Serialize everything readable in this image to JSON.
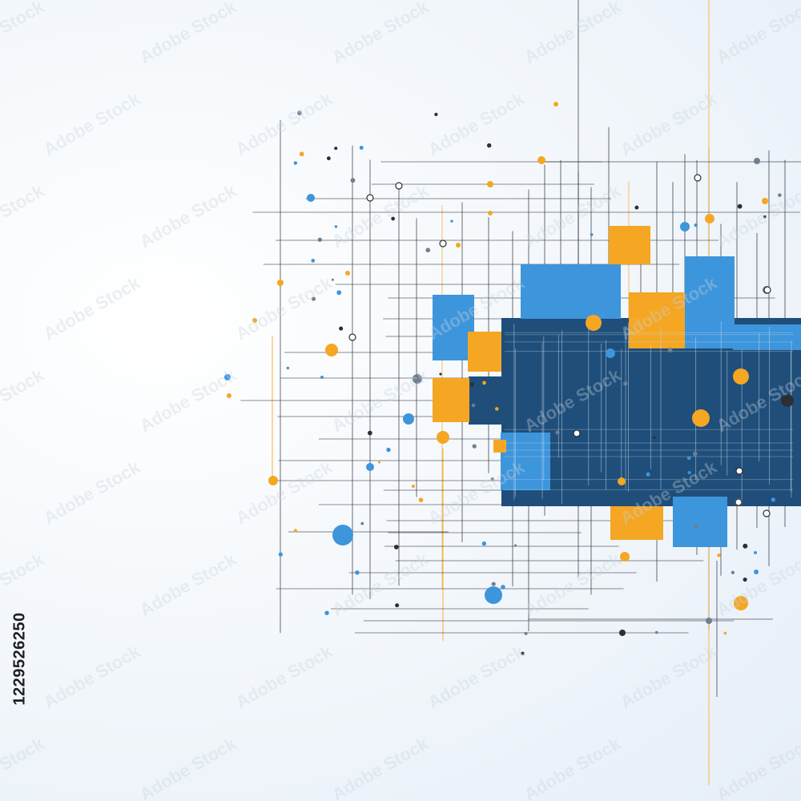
{
  "image_id_text": "1229526250",
  "watermark_text": "Adobe Stock",
  "colors": {
    "background": "#f4f8fc",
    "navy": "#1f4e7a",
    "blue": "#3d95dc",
    "orange": "#f5a623",
    "line": "#2b2f36",
    "gray": "#6f7f8f"
  }
}
